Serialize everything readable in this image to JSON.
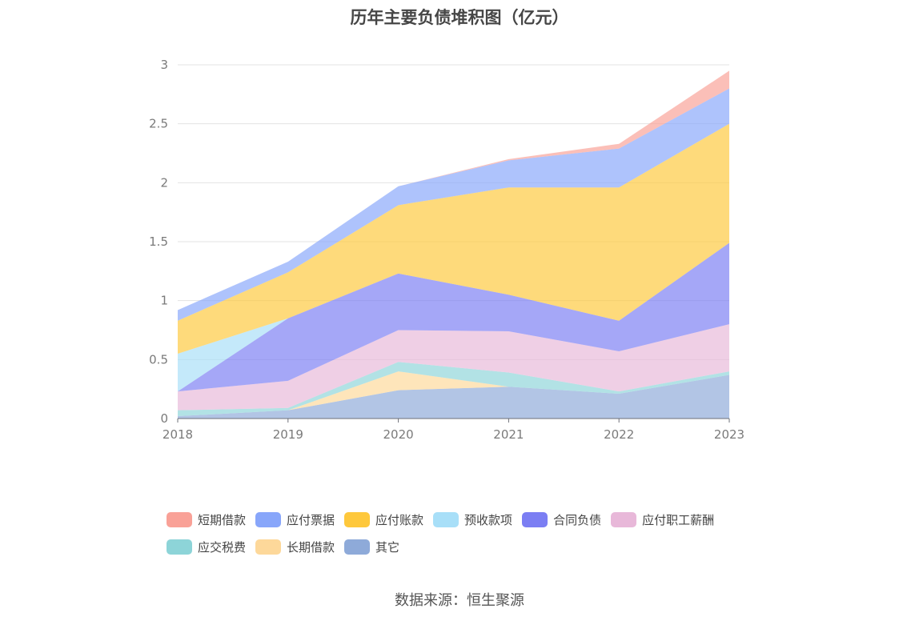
{
  "chart_data": {
    "type": "area",
    "stacked": true,
    "title": "历年主要负债堆积图（亿元）",
    "categories": [
      "2018",
      "2019",
      "2020",
      "2021",
      "2022",
      "2023"
    ],
    "ylim": [
      0,
      3
    ],
    "yticks": [
      "0",
      "0.5",
      "1",
      "1.5",
      "2",
      "2.5",
      "3"
    ],
    "grid": true,
    "legend_position": "bottom",
    "series": [
      {
        "name": "其它",
        "color": "#8eaad9",
        "values": [
          0.02,
          0.07,
          0.24,
          0.27,
          0.21,
          0.37
        ]
      },
      {
        "name": "长期借款",
        "color": "#fdd89a",
        "values": [
          0.0,
          0.0,
          0.16,
          0.0,
          0.0,
          0.0
        ]
      },
      {
        "name": "应交税费",
        "color": "#8dd4d8",
        "values": [
          0.05,
          0.02,
          0.08,
          0.12,
          0.02,
          0.03
        ]
      },
      {
        "name": "应付职工薪酬",
        "color": "#e8b8d9",
        "values": [
          0.16,
          0.23,
          0.27,
          0.35,
          0.34,
          0.4
        ]
      },
      {
        "name": "合同负债",
        "color": "#7b7ef3",
        "values": [
          0.0,
          0.53,
          0.48,
          0.31,
          0.26,
          0.69
        ]
      },
      {
        "name": "预收款项",
        "color": "#a8dff8",
        "values": [
          0.32,
          0.0,
          0.0,
          0.0,
          0.0,
          0.0
        ]
      },
      {
        "name": "应付账款",
        "color": "#fec83c",
        "values": [
          0.28,
          0.39,
          0.58,
          0.91,
          1.13,
          1.01
        ]
      },
      {
        "name": "应付票据",
        "color": "#88a6fa",
        "values": [
          0.09,
          0.09,
          0.16,
          0.23,
          0.33,
          0.3
        ]
      },
      {
        "name": "短期借款",
        "color": "#f9a197",
        "values": [
          0.0,
          0.0,
          0.0,
          0.01,
          0.04,
          0.15
        ]
      }
    ],
    "legend_order": [
      "短期借款",
      "应付票据",
      "应付账款",
      "预收款项",
      "合同负债",
      "应付职工薪酬",
      "应交税费",
      "长期借款",
      "其它"
    ],
    "source": "数据来源：恒生聚源"
  }
}
